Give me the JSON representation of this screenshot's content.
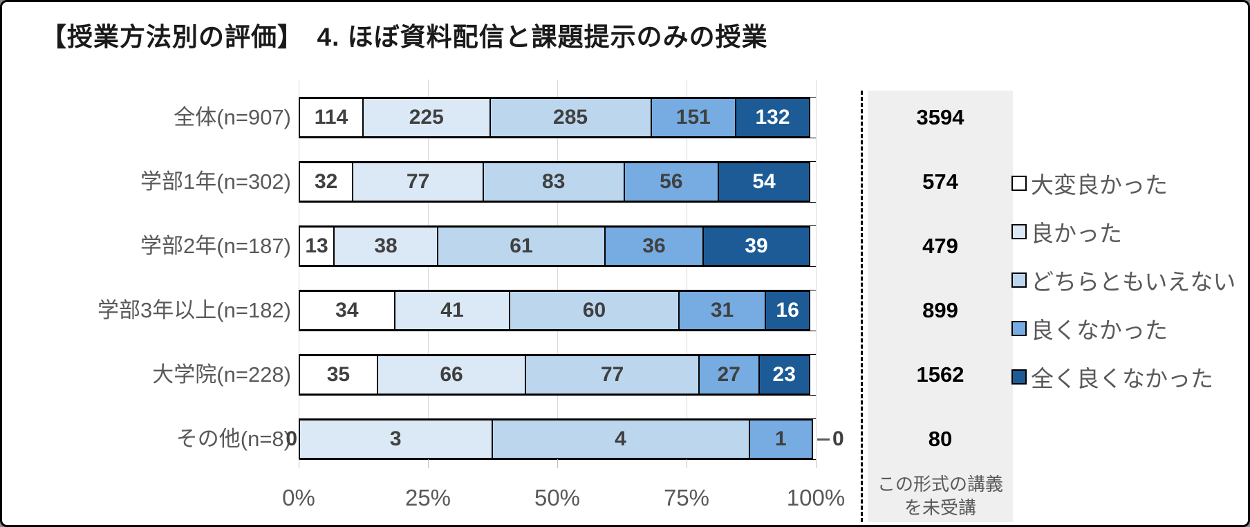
{
  "title": "【授業方法別の評価】　4. ほぼ資料配信と課題提示のみの授業",
  "colors": {
    "grid": "#d9d9d9",
    "panel_bg": "#efefef",
    "axis_text": "#595959",
    "bar_label_dark": "#404040",
    "bar_label_light": "#ffffff",
    "bar_border": "#000000"
  },
  "chart_data": {
    "type": "bar",
    "stacked": true,
    "orientation": "horizontal",
    "normalized": "percent_of_row_total",
    "title": "【授業方法別の評価】　4. ほぼ資料配信と課題提示のみの授業",
    "categories": [
      "全体(n=907)",
      "学部1年(n=302)",
      "学部2年(n=187)",
      "学部3年以上(n=182)",
      "大学院(n=228)",
      "その他(n=8)"
    ],
    "series": [
      {
        "name": "大変良かった",
        "color": "#ffffff",
        "label_color": "#404040",
        "values": [
          114,
          32,
          13,
          34,
          35,
          0
        ]
      },
      {
        "name": "良かった",
        "color": "#dbe8f5",
        "label_color": "#404040",
        "values": [
          225,
          77,
          38,
          41,
          66,
          3
        ]
      },
      {
        "name": "どちらともいえない",
        "color": "#bcd6ee",
        "label_color": "#404040",
        "values": [
          285,
          83,
          61,
          60,
          77,
          4
        ]
      },
      {
        "name": "良くなかった",
        "color": "#76ace1",
        "label_color": "#404040",
        "values": [
          151,
          56,
          36,
          31,
          27,
          1
        ]
      },
      {
        "name": "全く良くなかった",
        "color": "#1d5b97",
        "label_color": "#ffffff",
        "values": [
          132,
          54,
          39,
          16,
          23,
          0
        ]
      }
    ],
    "x_ticks": [
      "0%",
      "25%",
      "50%",
      "75%",
      "100%"
    ],
    "xlim": [
      0,
      100
    ],
    "grid": true,
    "legend_position": "right",
    "not_attended_column": {
      "caption_line1": "この形式の講義",
      "caption_line2": "を未受講",
      "values": [
        3594,
        574,
        479,
        899,
        1562,
        80
      ]
    }
  }
}
